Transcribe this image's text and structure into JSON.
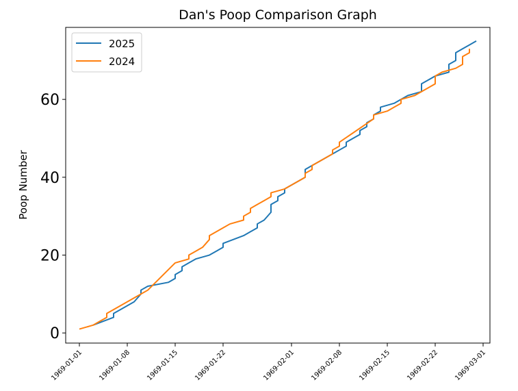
{
  "chart_data": {
    "type": "line",
    "title": "Dan's Poop Comparison Graph",
    "y_label": "Poop Number",
    "legend": "upper left",
    "xlim": [
      "1968-12-30",
      "1969-03-02"
    ],
    "xticks": [
      "1969-01-01",
      "1969-01-08",
      "1969-01-15",
      "1969-01-22",
      "1969-02-01",
      "1969-02-08",
      "1969-02-15",
      "1969-02-22",
      "1969-03-01"
    ],
    "ylim": [
      -2.6,
      78.5
    ],
    "yticks": [
      0,
      20,
      40,
      60
    ],
    "series": [
      {
        "name": "2025",
        "color": "#1f77b4",
        "x": [
          "1969-01-03",
          "1969-01-06",
          "1969-01-06",
          "1969-01-07",
          "1969-01-09",
          "1969-01-10",
          "1969-01-10",
          "1969-01-11",
          "1969-01-14",
          "1969-01-15",
          "1969-01-15",
          "1969-01-16",
          "1969-01-16",
          "1969-01-17",
          "1969-01-18",
          "1969-01-20",
          "1969-01-21",
          "1969-01-22",
          "1969-01-22",
          "1969-01-25",
          "1969-01-26",
          "1969-01-27",
          "1969-01-27",
          "1969-01-28",
          "1969-01-29",
          "1969-01-29",
          "1969-01-29",
          "1969-01-30",
          "1969-01-30",
          "1969-01-31",
          "1969-01-31",
          "1969-02-03",
          "1969-02-03",
          "1969-02-03",
          "1969-02-04",
          "1969-02-05",
          "1969-02-07",
          "1969-02-08",
          "1969-02-09",
          "1969-02-09",
          "1969-02-10",
          "1969-02-11",
          "1969-02-11",
          "1969-02-12",
          "1969-02-12",
          "1969-02-13",
          "1969-02-13",
          "1969-02-14",
          "1969-02-14",
          "1969-02-16",
          "1969-02-17",
          "1969-02-18",
          "1969-02-20",
          "1969-02-20",
          "1969-02-20",
          "1969-02-21",
          "1969-02-22",
          "1969-02-24",
          "1969-02-24",
          "1969-02-24",
          "1969-02-25",
          "1969-02-25",
          "1969-02-25",
          "1969-02-26",
          "1969-02-27",
          "1969-02-28"
        ],
        "values": [
          2,
          4,
          5,
          6,
          8,
          10,
          11,
          12,
          13,
          14,
          15,
          16,
          17,
          18,
          19,
          20,
          21,
          22,
          23,
          25,
          26,
          27,
          28,
          29,
          31,
          32,
          33,
          34,
          35,
          36,
          37,
          40,
          41,
          42,
          43,
          44,
          46,
          47,
          48,
          49,
          50,
          51,
          52,
          53,
          54,
          55,
          56,
          57,
          58,
          59,
          60,
          61,
          62,
          63,
          64,
          65,
          66,
          67,
          68,
          69,
          70,
          71,
          72,
          73,
          74,
          75
        ]
      },
      {
        "name": "2024",
        "color": "#ff7f0e",
        "x": [
          "1969-01-01",
          "1969-01-03",
          "1969-01-04",
          "1969-01-05",
          "1969-01-05",
          "1969-01-06",
          "1969-01-10",
          "1969-01-11",
          "1969-01-15",
          "1969-01-17",
          "1969-01-17",
          "1969-01-18",
          "1969-01-19",
          "1969-01-20",
          "1969-01-20",
          "1969-01-22",
          "1969-01-23",
          "1969-01-25",
          "1969-01-25",
          "1969-01-26",
          "1969-01-26",
          "1969-01-27",
          "1969-01-28",
          "1969-01-29",
          "1969-01-29",
          "1969-01-31",
          "1969-02-03",
          "1969-02-03",
          "1969-02-04",
          "1969-02-04",
          "1969-02-05",
          "1969-02-07",
          "1969-02-07",
          "1969-02-08",
          "1969-02-08",
          "1969-02-13",
          "1969-02-13",
          "1969-02-15",
          "1969-02-16",
          "1969-02-17",
          "1969-02-17",
          "1969-02-19",
          "1969-02-21",
          "1969-02-22",
          "1969-02-22",
          "1969-02-22",
          "1969-02-23",
          "1969-02-25",
          "1969-02-26",
          "1969-02-26",
          "1969-02-26",
          "1969-02-27",
          "1969-02-27"
        ],
        "values": [
          1,
          2,
          3,
          4,
          5,
          6,
          10,
          11,
          18,
          19,
          20,
          21,
          22,
          24,
          25,
          27,
          28,
          29,
          30,
          31,
          32,
          33,
          34,
          35,
          36,
          37,
          40,
          41,
          42,
          43,
          44,
          46,
          47,
          48,
          49,
          55,
          56,
          57,
          58,
          59,
          60,
          61,
          63,
          64,
          65,
          66,
          67,
          68,
          69,
          70,
          71,
          72,
          73
        ]
      }
    ]
  }
}
